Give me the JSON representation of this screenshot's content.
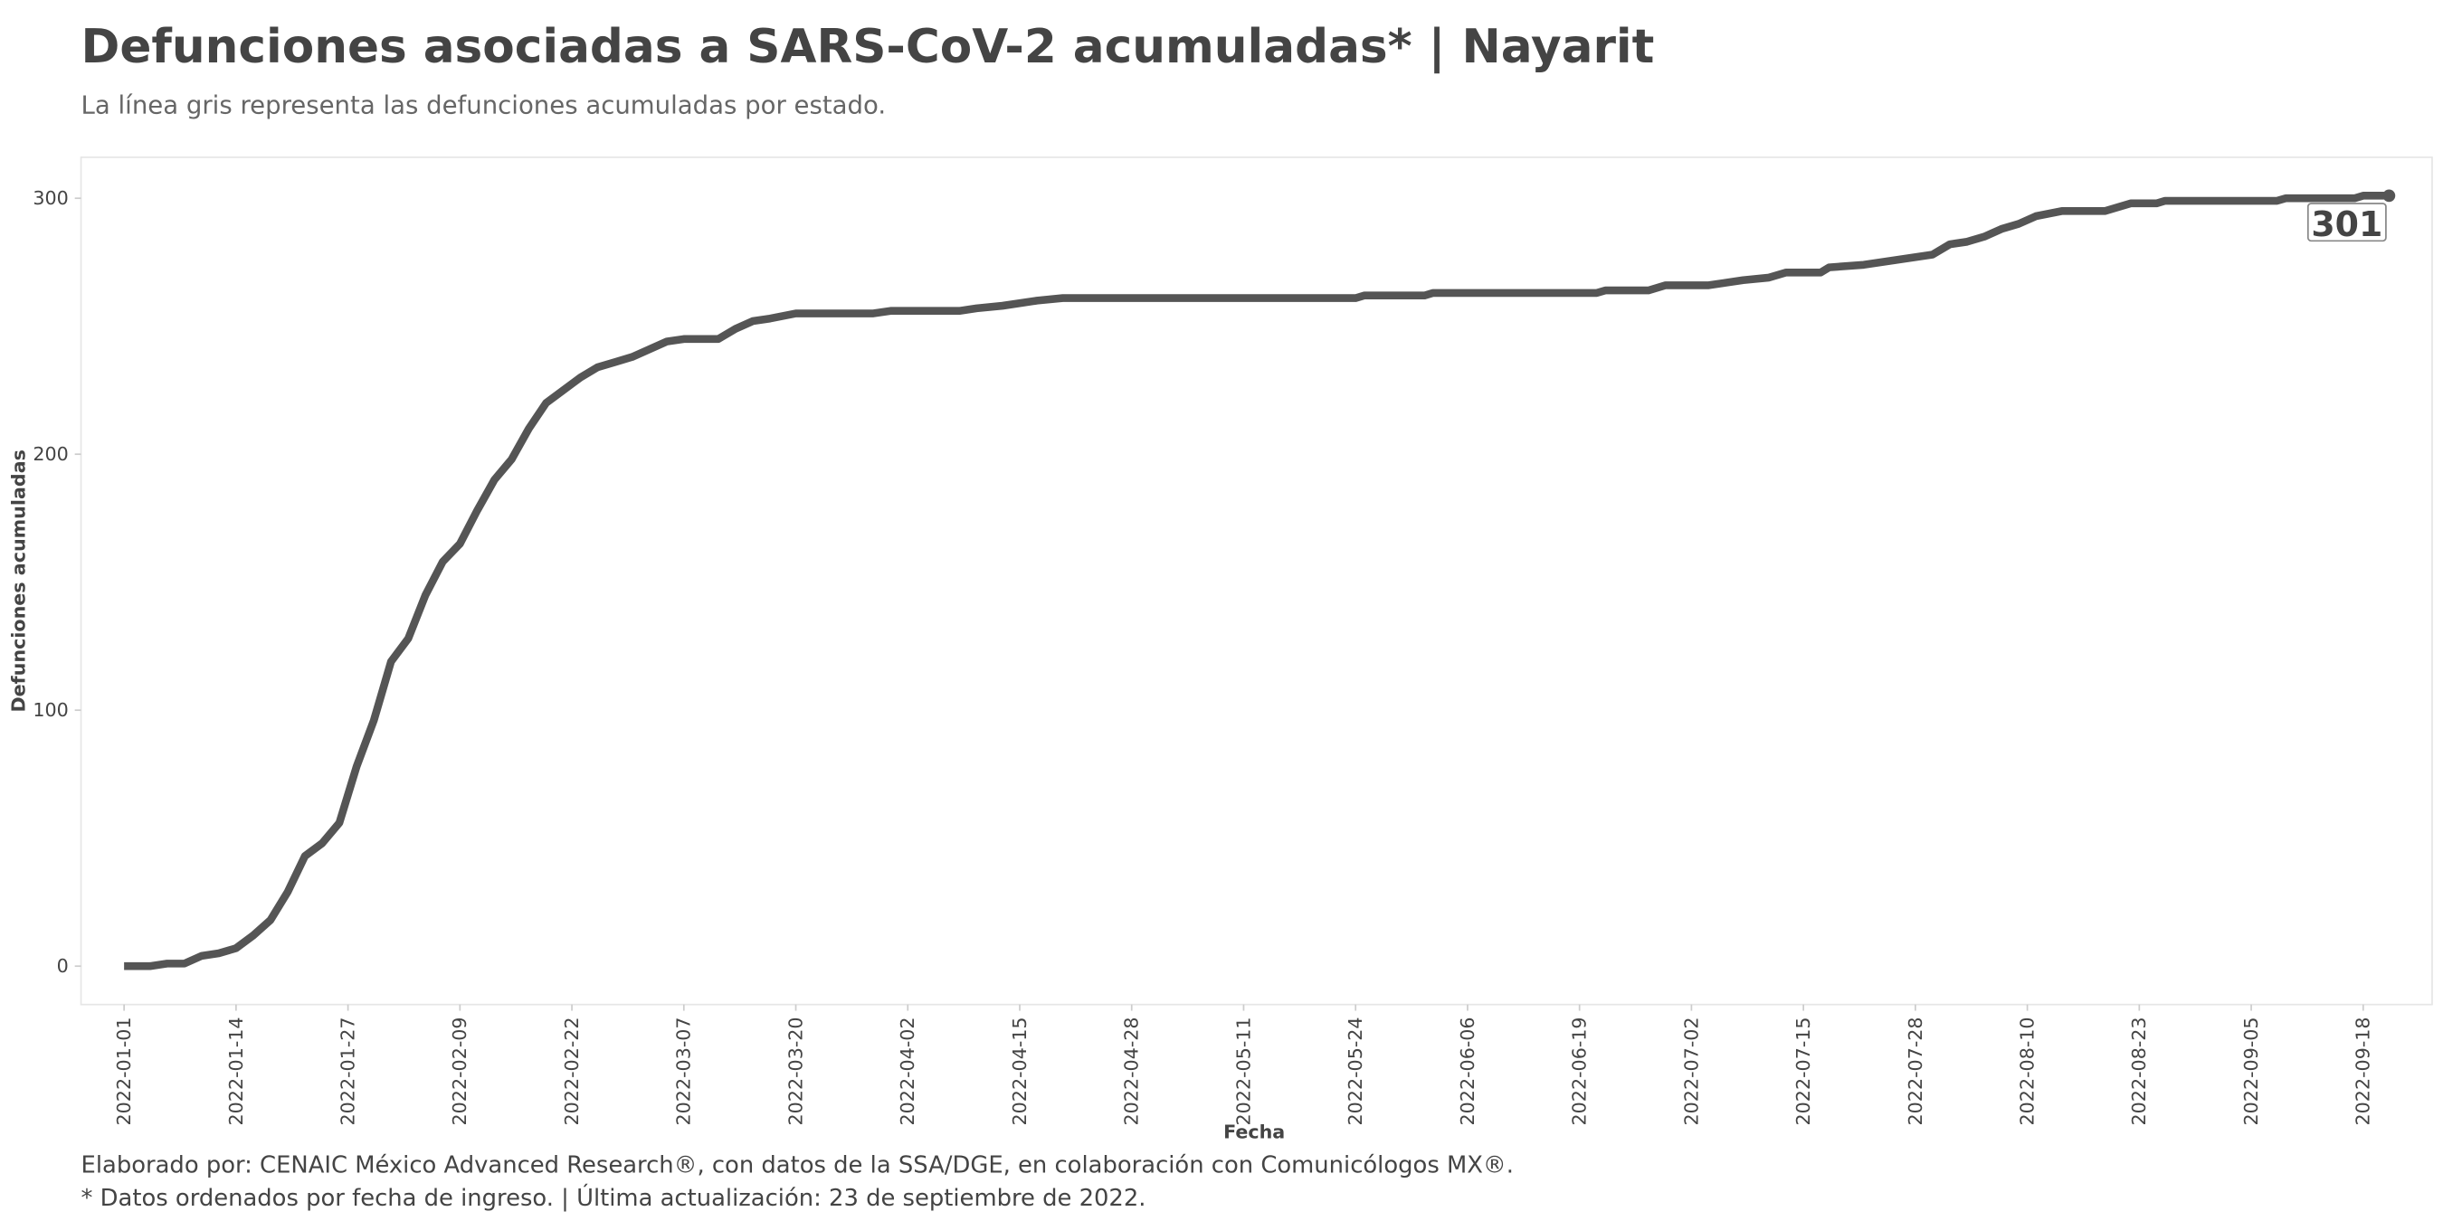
{
  "chart_data": {
    "type": "line",
    "title": "Defunciones asociadas a SARS-CoV-2 acumuladas* | Nayarit",
    "subtitle": "La línea gris representa las defunciones acumuladas por estado.",
    "x_label": "Fecha",
    "y_label": "Defunciones acumuladas",
    "footer": [
      "Elaborado por: CENAIC México Advanced Research®, con datos de la SSA/DGE, en colaboración con Comunicólogos MX®.",
      "* Datos ordenados por fecha de ingreso. | Última actualización: 23 de septiembre de 2022."
    ],
    "x": [
      "2022-01-01",
      "2022-01-04",
      "2022-01-06",
      "2022-01-08",
      "2022-01-10",
      "2022-01-12",
      "2022-01-14",
      "2022-01-16",
      "2022-01-18",
      "2022-01-20",
      "2022-01-22",
      "2022-01-24",
      "2022-01-26",
      "2022-01-28",
      "2022-01-30",
      "2022-02-01",
      "2022-02-03",
      "2022-02-05",
      "2022-02-07",
      "2022-02-09",
      "2022-02-11",
      "2022-02-13",
      "2022-02-15",
      "2022-02-17",
      "2022-02-19",
      "2022-02-21",
      "2022-02-23",
      "2022-02-25",
      "2022-02-27",
      "2022-03-01",
      "2022-03-03",
      "2022-03-05",
      "2022-03-07",
      "2022-03-11",
      "2022-03-13",
      "2022-03-15",
      "2022-03-17",
      "2022-03-20",
      "2022-03-29",
      "2022-03-31",
      "2022-04-08",
      "2022-04-10",
      "2022-04-13",
      "2022-04-17",
      "2022-04-20",
      "2022-05-24",
      "2022-05-25",
      "2022-06-01",
      "2022-06-02",
      "2022-06-21",
      "2022-06-22",
      "2022-06-27",
      "2022-06-29",
      "2022-07-04",
      "2022-07-08",
      "2022-07-11",
      "2022-07-13",
      "2022-07-17",
      "2022-07-18",
      "2022-07-22",
      "2022-07-26",
      "2022-07-30",
      "2022-08-01",
      "2022-08-03",
      "2022-08-05",
      "2022-08-07",
      "2022-08-09",
      "2022-08-11",
      "2022-08-14",
      "2022-08-19",
      "2022-08-22",
      "2022-08-25",
      "2022-08-26",
      "2022-09-08",
      "2022-09-09",
      "2022-09-17",
      "2022-09-18",
      "2022-09-21"
    ],
    "series": [
      {
        "name": "Nayarit",
        "color": "#555555",
        "values": [
          0,
          0,
          1,
          1,
          4,
          5,
          7,
          12,
          18,
          29,
          43,
          48,
          56,
          78,
          96,
          119,
          128,
          145,
          158,
          165,
          178,
          190,
          198,
          210,
          220,
          225,
          230,
          234,
          236,
          238,
          241,
          244,
          245,
          245,
          249,
          252,
          253,
          255,
          255,
          256,
          256,
          257,
          258,
          260,
          261,
          261,
          262,
          262,
          263,
          263,
          264,
          264,
          266,
          266,
          268,
          269,
          271,
          271,
          273,
          274,
          276,
          278,
          282,
          283,
          285,
          288,
          290,
          293,
          295,
          295,
          298,
          298,
          299,
          299,
          300,
          300,
          301,
          301
        ]
      }
    ],
    "xlim": [
      "2021-12-27",
      "2022-09-26"
    ],
    "xticks": [
      "2022-01-01",
      "2022-01-14",
      "2022-01-27",
      "2022-02-09",
      "2022-02-22",
      "2022-03-07",
      "2022-03-20",
      "2022-04-02",
      "2022-04-15",
      "2022-04-28",
      "2022-05-11",
      "2022-05-24",
      "2022-06-06",
      "2022-06-19",
      "2022-07-02",
      "2022-07-15",
      "2022-07-28",
      "2022-08-10",
      "2022-08-23",
      "2022-09-05",
      "2022-09-18"
    ],
    "ylim": [
      -15,
      316
    ],
    "yticks": [
      0,
      100,
      200,
      300
    ],
    "grid": false
  }
}
